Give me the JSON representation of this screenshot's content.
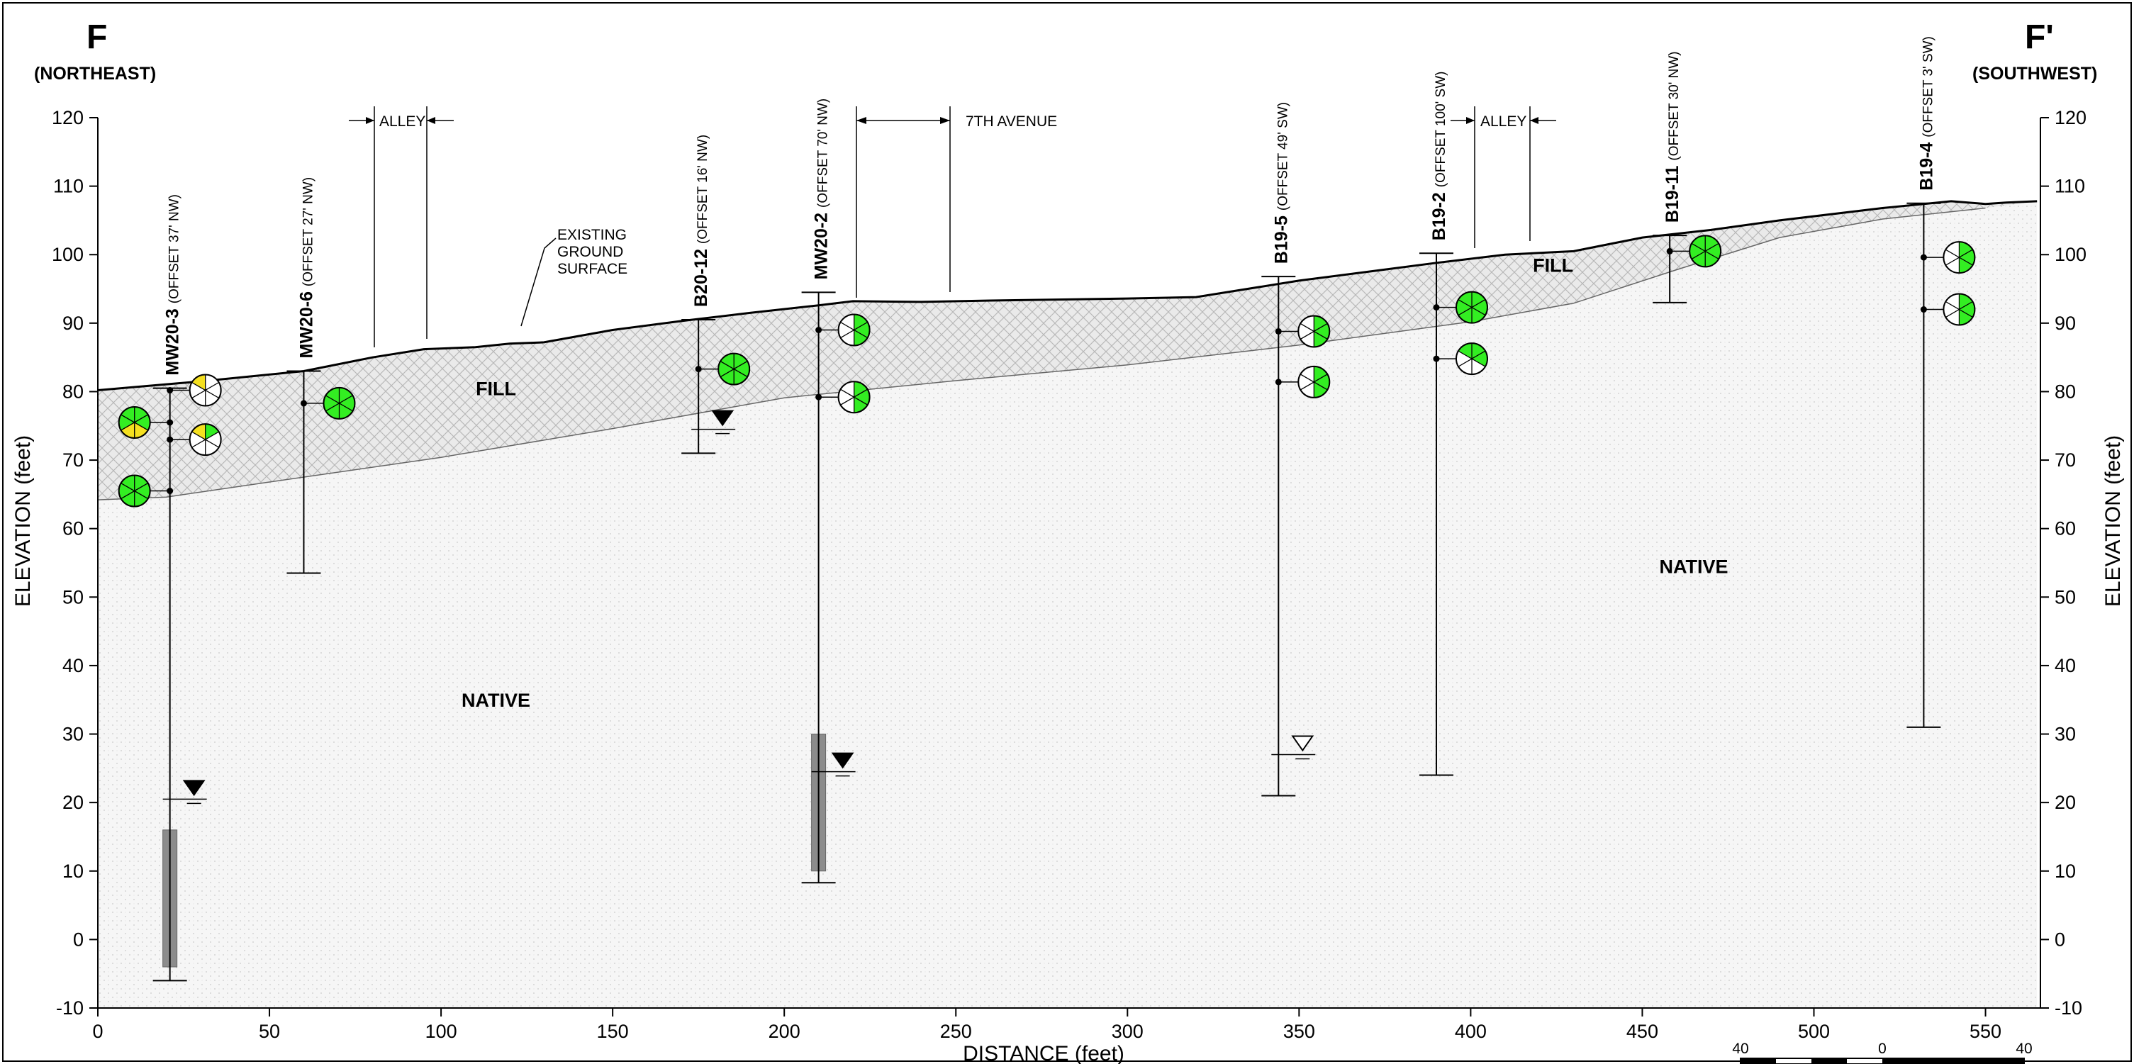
{
  "section": {
    "left_label": "F",
    "right_label": "F'",
    "left_direction": "(NORTHEAST)",
    "right_direction": "(SOUTHWEST)"
  },
  "axes": {
    "xlabel": "DISTANCE (feet)",
    "ylabel_left": "ELEVATION (feet)",
    "ylabel_right": "ELEVATION (feet)",
    "xlim": [
      0,
      566
    ],
    "ylim": [
      -10,
      120
    ],
    "xticks": [
      0,
      50,
      100,
      150,
      200,
      250,
      300,
      350,
      400,
      450,
      500,
      550
    ],
    "yticks": [
      -10,
      0,
      10,
      20,
      30,
      40,
      50,
      60,
      70,
      80,
      90,
      100,
      110,
      120
    ]
  },
  "units": {
    "fill": "FILL",
    "native": "NATIVE"
  },
  "annotations": {
    "existing_ground": [
      "EXISTING",
      "GROUND",
      "SURFACE"
    ],
    "alley": "ALLEY",
    "seventh_avenue": "7TH AVENUE"
  },
  "scale_bar": {
    "left": "40",
    "mid": "0",
    "right": "40"
  },
  "chart_data": {
    "type": "cross-section",
    "ground_surface": [
      [
        0,
        80.2
      ],
      [
        30,
        81.5
      ],
      [
        60,
        83
      ],
      [
        80,
        85
      ],
      [
        95,
        86.2
      ],
      [
        110,
        86.5
      ],
      [
        120,
        87
      ],
      [
        130,
        87.2
      ],
      [
        150,
        89
      ],
      [
        170,
        90.3
      ],
      [
        190,
        91.5
      ],
      [
        210,
        92.6
      ],
      [
        220,
        93.2
      ],
      [
        240,
        93.1
      ],
      [
        260,
        93.3
      ],
      [
        300,
        93.6
      ],
      [
        320,
        93.8
      ],
      [
        330,
        94.6
      ],
      [
        350,
        96.2
      ],
      [
        370,
        97.5
      ],
      [
        390,
        98.8
      ],
      [
        410,
        100
      ],
      [
        430,
        100.5
      ],
      [
        450,
        102.5
      ],
      [
        470,
        103.6
      ],
      [
        490,
        105
      ],
      [
        520,
        106.8
      ],
      [
        540,
        107.8
      ],
      [
        550,
        107.4
      ],
      [
        556,
        107.6
      ],
      [
        565,
        107.8
      ]
    ],
    "fill_native_contact": [
      [
        0,
        64.2
      ],
      [
        20,
        64.6
      ],
      [
        50,
        66.8
      ],
      [
        100,
        70.4
      ],
      [
        150,
        74.6
      ],
      [
        200,
        79.1
      ],
      [
        250,
        81.6
      ],
      [
        300,
        83.9
      ],
      [
        350,
        86.8
      ],
      [
        400,
        90.2
      ],
      [
        430,
        92.9
      ],
      [
        460,
        97.8
      ],
      [
        490,
        102.5
      ],
      [
        520,
        105.2
      ],
      [
        550,
        106.8
      ]
    ],
    "borings": [
      {
        "name": "MW20-3",
        "offset": "(OFFSET 37' NW)",
        "x": 21,
        "top": 80.5,
        "bottom": -6,
        "screen": [
          -4,
          16
        ],
        "water_level": 20.5,
        "water_symbol": "filled"
      },
      {
        "name": "MW20-6",
        "offset": "(OFFSET 27' NW)",
        "x": 60,
        "top": 83,
        "bottom": 53.5
      },
      {
        "name": "B20-12",
        "offset": "(OFFSET 16' NW)",
        "x": 175,
        "top": 90.5,
        "bottom": 71,
        "water_level": 74.5,
        "water_symbol": "filled"
      },
      {
        "name": "MW20-2",
        "offset": "(OFFSET 70' NW)",
        "x": 210,
        "top": 94.5,
        "bottom": 8.3,
        "screen": [
          10,
          30
        ],
        "water_level": 24.5,
        "water_symbol": "filled"
      },
      {
        "name": "B19-5",
        "offset": "(OFFSET 49' SW)",
        "x": 344,
        "top": 96.8,
        "bottom": 21,
        "water_level": 27,
        "water_symbol": "open"
      },
      {
        "name": "B19-2",
        "offset": "(OFFSET 100' SW)",
        "x": 390,
        "top": 100.2,
        "bottom": 24
      },
      {
        "name": "B19-11",
        "offset": "(OFFSET 30' NW)",
        "x": 458,
        "top": 102.8,
        "bottom": 93
      },
      {
        "name": "B19-4",
        "offset": "(OFFSET 3' SW)",
        "x": 532,
        "top": 107.5,
        "bottom": 31
      }
    ],
    "sample_markers": [
      {
        "boring": "MW20-3",
        "elev": 80.2,
        "side": "right",
        "pattern": [
          0,
          0,
          0,
          0,
          0,
          2
        ]
      },
      {
        "boring": "MW20-3",
        "elev": 75.5,
        "side": "left",
        "pattern": [
          1,
          1,
          2,
          2,
          1,
          1
        ]
      },
      {
        "boring": "MW20-3",
        "elev": 73.0,
        "side": "right",
        "pattern": [
          1,
          0,
          0,
          0,
          0,
          2
        ]
      },
      {
        "boring": "MW20-3",
        "elev": 65.5,
        "side": "left",
        "pattern": [
          1,
          1,
          1,
          1,
          1,
          1
        ]
      },
      {
        "boring": "MW20-6",
        "elev": 78.3,
        "side": "right",
        "pattern": [
          1,
          1,
          1,
          1,
          1,
          1
        ]
      },
      {
        "boring": "B20-12",
        "elev": 83.3,
        "side": "right",
        "pattern": [
          1,
          1,
          1,
          1,
          1,
          1
        ]
      },
      {
        "boring": "MW20-2",
        "elev": 89.0,
        "side": "right",
        "pattern": [
          1,
          1,
          1,
          0,
          0,
          0
        ]
      },
      {
        "boring": "MW20-2",
        "elev": 79.2,
        "side": "right",
        "pattern": [
          1,
          1,
          1,
          0,
          0,
          0
        ]
      },
      {
        "boring": "B19-5",
        "elev": 88.8,
        "side": "right",
        "pattern": [
          1,
          1,
          1,
          0,
          0,
          0
        ]
      },
      {
        "boring": "B19-5",
        "elev": 81.4,
        "side": "right",
        "pattern": [
          1,
          1,
          1,
          0,
          0,
          0
        ]
      },
      {
        "boring": "B19-2",
        "elev": 92.3,
        "side": "right",
        "pattern": [
          1,
          1,
          1,
          1,
          1,
          1
        ]
      },
      {
        "boring": "B19-2",
        "elev": 84.8,
        "side": "right",
        "pattern": [
          1,
          1,
          0,
          0,
          0,
          1
        ]
      },
      {
        "boring": "B19-11",
        "elev": 100.5,
        "side": "right",
        "pattern": [
          1,
          1,
          1,
          1,
          1,
          1
        ]
      },
      {
        "boring": "B19-4",
        "elev": 99.6,
        "side": "right",
        "pattern": [
          1,
          1,
          1,
          0,
          0,
          0
        ]
      },
      {
        "boring": "B19-4",
        "elev": 92.0,
        "side": "right",
        "pattern": [
          1,
          1,
          1,
          0,
          0,
          0
        ]
      }
    ],
    "unit_labels": [
      {
        "key": "fill",
        "x": 116,
        "y": 79.5
      },
      {
        "key": "native",
        "x": 116,
        "y": 34
      },
      {
        "key": "fill",
        "x": 424,
        "y": 97.5
      },
      {
        "key": "native",
        "x": 465,
        "y": 53.5
      }
    ],
    "pattern_colors": {
      "0": "#ffffff",
      "1": "#33ee22",
      "2": "#f5e020"
    }
  }
}
